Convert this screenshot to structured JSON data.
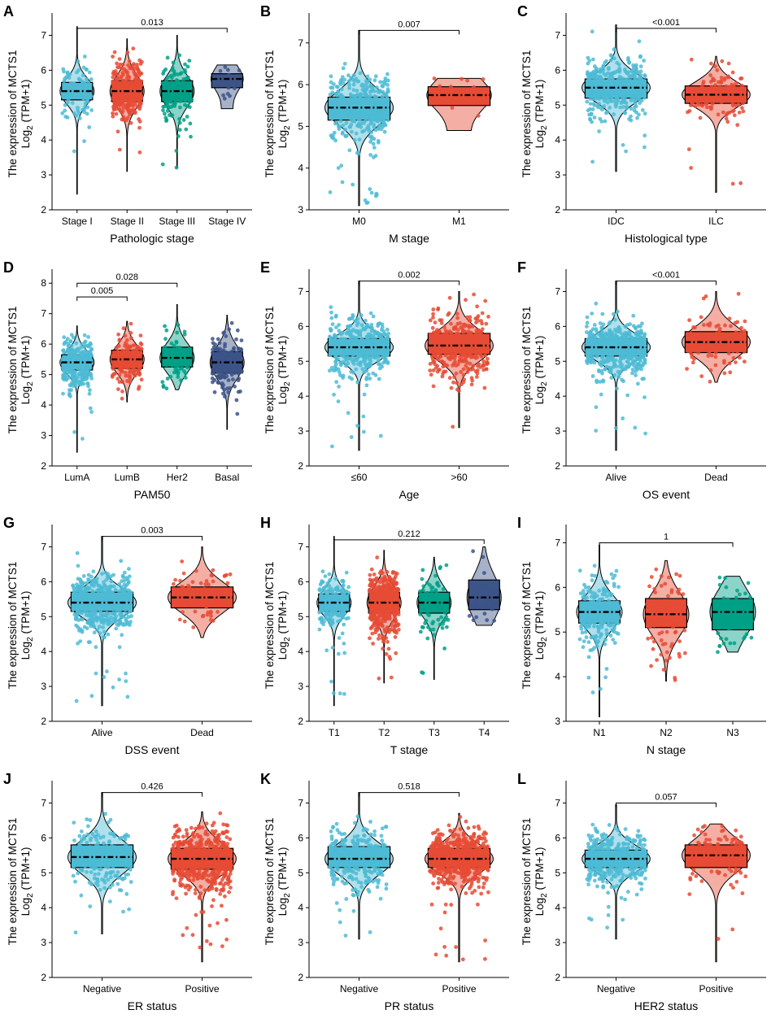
{
  "figure": {
    "y_axis_title_line1": "The expression of MCTS1",
    "y_axis_title_line2": "Log",
    "y_axis_title_sub": "2",
    "y_axis_title_line2_rest": " (TPM+1)"
  },
  "colors": {
    "blue": "#4DBBD5",
    "red": "#E64B35",
    "green": "#00A087",
    "navy": "#3C5488"
  },
  "chart_data": [
    {
      "type": "violin-box",
      "label": "A",
      "xlabel": "Pathologic stage",
      "yticks": [
        2,
        3,
        4,
        5,
        6,
        7
      ],
      "ylim": [
        2,
        7.5
      ],
      "categories": [
        "Stage I",
        "Stage II",
        "Stage III",
        "Stage IV"
      ],
      "series": [
        {
          "name": "Stage I",
          "color": "blue",
          "q1": 5.15,
          "median": 5.4,
          "q3": 5.65,
          "min": 2.45,
          "max": 7.25,
          "n": 90,
          "violin": "wide-full"
        },
        {
          "name": "Stage II",
          "color": "red",
          "q1": 5.1,
          "median": 5.4,
          "q3": 5.7,
          "min": 3.1,
          "max": 6.9,
          "n": 300,
          "violin": "wide-full"
        },
        {
          "name": "Stage III",
          "color": "green",
          "q1": 5.1,
          "median": 5.4,
          "q3": 5.7,
          "min": 3.2,
          "max": 7.0,
          "n": 130,
          "violin": "wide-full"
        },
        {
          "name": "Stage IV",
          "color": "navy",
          "q1": 5.5,
          "median": 5.75,
          "q3": 5.9,
          "min": 4.9,
          "max": 6.15,
          "n": 15,
          "violin": "small"
        }
      ],
      "comparisons": [
        {
          "from": 0,
          "to": 3,
          "label": "0.013",
          "y": 7.2
        }
      ]
    },
    {
      "type": "violin-box",
      "label": "B",
      "xlabel": "M stage",
      "yticks": [
        3,
        4,
        5,
        6,
        7
      ],
      "ylim": [
        3,
        7.6
      ],
      "categories": [
        "M0",
        "M1"
      ],
      "series": [
        {
          "name": "M0",
          "color": "blue",
          "q1": 5.15,
          "median": 5.45,
          "q3": 5.7,
          "min": 3.1,
          "max": 7.3,
          "n": 400,
          "violin": "wide-full"
        },
        {
          "name": "M1",
          "color": "red",
          "q1": 5.5,
          "median": 5.75,
          "q3": 5.95,
          "min": 4.9,
          "max": 6.15,
          "n": 12,
          "violin": "small"
        }
      ],
      "comparisons": [
        {
          "from": 0,
          "to": 1,
          "label": "0.007",
          "y": 7.3
        }
      ]
    },
    {
      "type": "violin-box",
      "label": "C",
      "xlabel": "Histological type",
      "yticks": [
        2,
        3,
        4,
        5,
        6,
        7
      ],
      "ylim": [
        2,
        7.5
      ],
      "categories": [
        "IDC",
        "ILC"
      ],
      "series": [
        {
          "name": "IDC",
          "color": "blue",
          "q1": 5.2,
          "median": 5.5,
          "q3": 5.75,
          "min": 3.1,
          "max": 7.3,
          "n": 400,
          "violin": "wide-full"
        },
        {
          "name": "ILC",
          "color": "red",
          "q1": 5.05,
          "median": 5.3,
          "q3": 5.55,
          "min": 2.5,
          "max": 6.4,
          "n": 140,
          "violin": "wide-full"
        }
      ],
      "comparisons": [
        {
          "from": 0,
          "to": 1,
          "label": "<0.001",
          "y": 7.2
        }
      ]
    },
    {
      "type": "violin-box",
      "label": "D",
      "xlabel": "PAM50",
      "yticks": [
        2,
        3,
        4,
        5,
        6,
        7,
        8
      ],
      "ylim": [
        2,
        8.3
      ],
      "categories": [
        "LumA",
        "LumB",
        "Her2",
        "Basal"
      ],
      "series": [
        {
          "name": "LumA",
          "color": "blue",
          "q1": 5.15,
          "median": 5.4,
          "q3": 5.65,
          "min": 2.45,
          "max": 6.6,
          "n": 300,
          "violin": "wide-full"
        },
        {
          "name": "LumB",
          "color": "red",
          "q1": 5.2,
          "median": 5.5,
          "q3": 5.8,
          "min": 4.1,
          "max": 6.75,
          "n": 150,
          "violin": "wide-full"
        },
        {
          "name": "Her2",
          "color": "green",
          "q1": 5.25,
          "median": 5.55,
          "q3": 5.9,
          "min": 4.5,
          "max": 7.3,
          "n": 60,
          "violin": "wide-full"
        },
        {
          "name": "Basal",
          "color": "navy",
          "q1": 5.05,
          "median": 5.4,
          "q3": 5.75,
          "min": 3.2,
          "max": 6.95,
          "n": 150,
          "violin": "wide-full"
        }
      ],
      "comparisons": [
        {
          "from": 0,
          "to": 1,
          "label": "0.005",
          "y": 7.55
        },
        {
          "from": 0,
          "to": 2,
          "label": "0.028",
          "y": 8.0
        }
      ]
    },
    {
      "type": "violin-box",
      "label": "E",
      "xlabel": "Age",
      "yticks": [
        2,
        3,
        4,
        5,
        6,
        7
      ],
      "ylim": [
        2,
        7.5
      ],
      "categories": [
        "≤60",
        ">60"
      ],
      "series": [
        {
          "name": "≤60",
          "color": "blue",
          "q1": 5.15,
          "median": 5.4,
          "q3": 5.65,
          "min": 2.45,
          "max": 7.3,
          "n": 400,
          "violin": "wide-full"
        },
        {
          "name": ">60",
          "color": "red",
          "q1": 5.2,
          "median": 5.45,
          "q3": 5.8,
          "min": 3.1,
          "max": 7.0,
          "n": 380,
          "violin": "wide-full"
        }
      ],
      "comparisons": [
        {
          "from": 0,
          "to": 1,
          "label": "0.002",
          "y": 7.3
        }
      ]
    },
    {
      "type": "violin-box",
      "label": "F",
      "xlabel": "OS event",
      "yticks": [
        2,
        3,
        4,
        5,
        6,
        7
      ],
      "ylim": [
        2,
        7.5
      ],
      "categories": [
        "Alive",
        "Dead"
      ],
      "series": [
        {
          "name": "Alive",
          "color": "blue",
          "q1": 5.15,
          "median": 5.4,
          "q3": 5.65,
          "min": 2.45,
          "max": 7.3,
          "n": 500,
          "violin": "wide-full"
        },
        {
          "name": "Dead",
          "color": "red",
          "q1": 5.25,
          "median": 5.55,
          "q3": 5.85,
          "min": 4.4,
          "max": 7.0,
          "n": 100,
          "violin": "wide-full"
        }
      ],
      "comparisons": [
        {
          "from": 0,
          "to": 1,
          "label": "<0.001",
          "y": 7.3
        }
      ]
    },
    {
      "type": "violin-box",
      "label": "G",
      "xlabel": "DSS event",
      "yticks": [
        2,
        3,
        4,
        5,
        6,
        7
      ],
      "ylim": [
        2,
        7.5
      ],
      "categories": [
        "Alive",
        "Dead"
      ],
      "series": [
        {
          "name": "Alive",
          "color": "blue",
          "q1": 5.15,
          "median": 5.4,
          "q3": 5.7,
          "min": 2.45,
          "max": 7.3,
          "n": 500,
          "violin": "wide-full"
        },
        {
          "name": "Dead",
          "color": "red",
          "q1": 5.25,
          "median": 5.55,
          "q3": 5.85,
          "min": 4.4,
          "max": 7.0,
          "n": 70,
          "violin": "wide-full"
        }
      ],
      "comparisons": [
        {
          "from": 0,
          "to": 1,
          "label": "0.003",
          "y": 7.3
        }
      ]
    },
    {
      "type": "violin-box",
      "label": "H",
      "xlabel": "T stage",
      "yticks": [
        2,
        3,
        4,
        5,
        6,
        7
      ],
      "ylim": [
        2,
        7.5
      ],
      "categories": [
        "T1",
        "T2",
        "T3",
        "T4"
      ],
      "series": [
        {
          "name": "T1",
          "color": "blue",
          "q1": 5.15,
          "median": 5.4,
          "q3": 5.65,
          "min": 2.45,
          "max": 7.3,
          "n": 200,
          "violin": "wide-full"
        },
        {
          "name": "T2",
          "color": "red",
          "q1": 5.1,
          "median": 5.4,
          "q3": 5.7,
          "min": 3.1,
          "max": 6.9,
          "n": 400,
          "violin": "wide-full"
        },
        {
          "name": "T3",
          "color": "green",
          "q1": 5.1,
          "median": 5.4,
          "q3": 5.7,
          "min": 3.2,
          "max": 6.7,
          "n": 90,
          "violin": "wide-full"
        },
        {
          "name": "T4",
          "color": "navy",
          "q1": 5.2,
          "median": 5.55,
          "q3": 6.05,
          "min": 4.75,
          "max": 7.0,
          "n": 25,
          "violin": "wide-full"
        }
      ],
      "comparisons": [
        {
          "from": 0,
          "to": 3,
          "label": "0.212",
          "y": 7.2
        }
      ]
    },
    {
      "type": "violin-box",
      "label": "I",
      "xlabel": "N stage",
      "yticks": [
        3,
        4,
        5,
        6,
        7
      ],
      "ylim": [
        3,
        7.3
      ],
      "categories": [
        "N1",
        "N2",
        "N3"
      ],
      "series": [
        {
          "name": "N1",
          "color": "blue",
          "q1": 5.2,
          "median": 5.45,
          "q3": 5.7,
          "min": 3.1,
          "max": 6.95,
          "n": 250,
          "violin": "wide-full"
        },
        {
          "name": "N2",
          "color": "red",
          "q1": 5.1,
          "median": 5.4,
          "q3": 5.75,
          "min": 3.9,
          "max": 6.6,
          "n": 90,
          "violin": "wide-full"
        },
        {
          "name": "N3",
          "color": "green",
          "q1": 5.05,
          "median": 5.45,
          "q3": 5.75,
          "min": 4.55,
          "max": 6.25,
          "n": 60,
          "violin": "wide-full"
        }
      ],
      "comparisons": [
        {
          "from": 0,
          "to": 2,
          "label": "1",
          "y": 7.0
        }
      ]
    },
    {
      "type": "violin-box",
      "label": "J",
      "xlabel": "ER status",
      "yticks": [
        2,
        3,
        4,
        5,
        6,
        7
      ],
      "ylim": [
        2,
        7.5
      ],
      "categories": [
        "Negative",
        "Positive"
      ],
      "series": [
        {
          "name": "Negative",
          "color": "blue",
          "q1": 5.15,
          "median": 5.45,
          "q3": 5.8,
          "min": 3.25,
          "max": 7.3,
          "n": 200,
          "violin": "wide-full"
        },
        {
          "name": "Positive",
          "color": "red",
          "q1": 5.1,
          "median": 5.4,
          "q3": 5.7,
          "min": 2.45,
          "max": 6.75,
          "n": 600,
          "violin": "wide-full"
        }
      ],
      "comparisons": [
        {
          "from": 0,
          "to": 1,
          "label": "0.426",
          "y": 7.3
        }
      ]
    },
    {
      "type": "violin-box",
      "label": "K",
      "xlabel": "PR status",
      "yticks": [
        2,
        3,
        4,
        5,
        6,
        7
      ],
      "ylim": [
        2,
        7.5
      ],
      "categories": [
        "Negative",
        "Positive"
      ],
      "series": [
        {
          "name": "Negative",
          "color": "blue",
          "q1": 5.15,
          "median": 5.4,
          "q3": 5.75,
          "min": 3.1,
          "max": 7.3,
          "n": 300,
          "violin": "wide-full"
        },
        {
          "name": "Positive",
          "color": "red",
          "q1": 5.15,
          "median": 5.4,
          "q3": 5.7,
          "min": 2.45,
          "max": 6.7,
          "n": 550,
          "violin": "wide-full"
        }
      ],
      "comparisons": [
        {
          "from": 0,
          "to": 1,
          "label": "0.518",
          "y": 7.3
        }
      ]
    },
    {
      "type": "violin-box",
      "label": "L",
      "xlabel": "HER2 status",
      "yticks": [
        2,
        3,
        4,
        5,
        6,
        7
      ],
      "ylim": [
        2,
        7.5
      ],
      "categories": [
        "Negative",
        "Positive"
      ],
      "series": [
        {
          "name": "Negative",
          "color": "blue",
          "q1": 5.15,
          "median": 5.4,
          "q3": 5.65,
          "min": 3.1,
          "max": 6.95,
          "n": 400,
          "violin": "wide-full"
        },
        {
          "name": "Positive",
          "color": "red",
          "q1": 5.15,
          "median": 5.5,
          "q3": 5.8,
          "min": 2.45,
          "max": 6.4,
          "n": 90,
          "violin": "wide-full"
        }
      ],
      "comparisons": [
        {
          "from": 0,
          "to": 1,
          "label": "0.057",
          "y": 7.0
        }
      ]
    }
  ]
}
